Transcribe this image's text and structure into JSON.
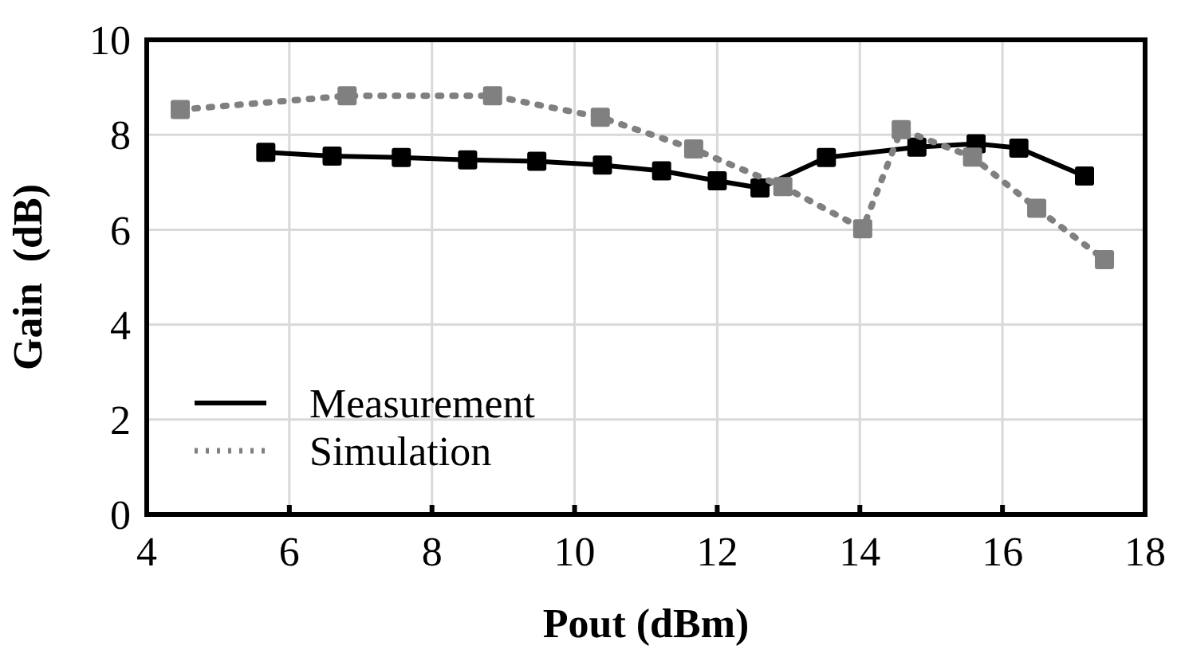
{
  "chart_data": {
    "type": "line",
    "xlabel": "Pout (dBm)",
    "ylabel": "Gain  (dB)",
    "xlim": [
      4,
      18
    ],
    "xticks": [
      4,
      6,
      8,
      10,
      12,
      14,
      16,
      18
    ],
    "ylim": [
      0,
      10
    ],
    "yticks": [
      0,
      2,
      4,
      6,
      8,
      10
    ],
    "grid": true,
    "legend": "bottom left",
    "marker": "square",
    "series": [
      {
        "name": "Measurement",
        "color": "#000000",
        "line_style": "solid",
        "x": [
          5.67,
          6.6,
          7.57,
          8.5,
          9.47,
          10.39,
          11.22,
          12.0,
          12.6,
          13.53,
          14.8,
          15.63,
          16.23,
          17.15
        ],
        "values": [
          7.63,
          7.55,
          7.52,
          7.47,
          7.44,
          7.36,
          7.24,
          7.03,
          6.88,
          7.52,
          7.74,
          7.81,
          7.72,
          7.13
        ]
      },
      {
        "name": "Simulation",
        "color": "#808080",
        "line_style": "dotted",
        "x": [
          4.47,
          6.81,
          8.85,
          10.36,
          11.67,
          12.92,
          14.04,
          14.58,
          15.58,
          16.48,
          17.43
        ],
        "values": [
          8.53,
          8.82,
          8.82,
          8.37,
          7.7,
          6.91,
          6.02,
          8.11,
          7.53,
          6.45,
          5.37
        ]
      }
    ]
  }
}
